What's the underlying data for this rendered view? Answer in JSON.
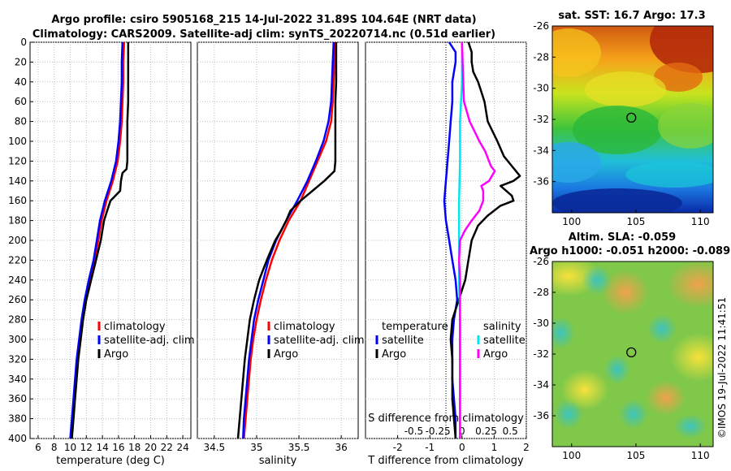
{
  "header": {
    "title_line1": "Argo profile: csiro 5905168_215 14-Jul-2022 31.89S 104.64E (NRT data)",
    "title_line2": "Climatology: CARS2009. Satellite-adj clim: synTS_20220714.nc (0.51d earlier)"
  },
  "timestamp": "©IMOS 19-Jul-2022 11:41:51",
  "colors": {
    "climatology": "#ff0000",
    "satellite": "#0000ff",
    "argo": "#000000",
    "salinity_satellite": "#00e5ee",
    "salinity_argo": "#ff00ff"
  },
  "chart_data": [
    {
      "type": "line",
      "name": "temperature-profile",
      "xlabel": "temperature (deg C)",
      "ylabel": "",
      "xlim": [
        5,
        25
      ],
      "ylim": [
        0,
        400
      ],
      "x_ticks": [
        6,
        8,
        10,
        12,
        14,
        16,
        18,
        20,
        22,
        24
      ],
      "y_ticks": [
        0,
        20,
        40,
        60,
        80,
        100,
        120,
        140,
        160,
        180,
        200,
        220,
        240,
        260,
        280,
        300,
        320,
        340,
        360,
        380,
        400
      ],
      "grid": true,
      "legend": [
        "climatology",
        "satellite-adj. clim",
        "Argo"
      ],
      "series": [
        {
          "name": "climatology",
          "depth": [
            0,
            20,
            40,
            60,
            80,
            100,
            120,
            140,
            160,
            180,
            200,
            220,
            240,
            260,
            280,
            300,
            320,
            340,
            360,
            380,
            400
          ],
          "values": [
            16.7,
            16.6,
            16.6,
            16.5,
            16.4,
            16.2,
            15.9,
            15.3,
            14.5,
            13.9,
            13.5,
            13.0,
            12.4,
            11.9,
            11.5,
            11.2,
            10.9,
            10.7,
            10.5,
            10.3,
            10.1
          ]
        },
        {
          "name": "satellite-adj. clim",
          "depth": [
            0,
            20,
            40,
            60,
            80,
            100,
            120,
            140,
            160,
            180,
            200,
            220,
            240,
            260,
            280,
            300,
            320,
            340,
            360,
            380,
            400
          ],
          "values": [
            16.5,
            16.4,
            16.4,
            16.3,
            16.2,
            16.0,
            15.7,
            15.1,
            14.3,
            13.7,
            13.3,
            12.9,
            12.3,
            11.8,
            11.4,
            11.1,
            10.8,
            10.6,
            10.4,
            10.2,
            10.0
          ]
        },
        {
          "name": "Argo",
          "depth": [
            0,
            20,
            40,
            60,
            80,
            100,
            120,
            128,
            132,
            140,
            150,
            160,
            170,
            180,
            200,
            220,
            240,
            260,
            280,
            300,
            320,
            340,
            360,
            380,
            400
          ],
          "values": [
            17.2,
            17.2,
            17.2,
            17.2,
            17.1,
            17.1,
            17.1,
            17.0,
            16.5,
            16.3,
            16.2,
            15.0,
            14.6,
            14.2,
            13.8,
            13.2,
            12.6,
            12.0,
            11.6,
            11.3,
            11.0,
            10.8,
            10.6,
            10.4,
            10.2
          ]
        }
      ]
    },
    {
      "type": "line",
      "name": "salinity-profile",
      "xlabel": "salinity",
      "xlim": [
        34.3,
        36.2
      ],
      "ylim": [
        0,
        400
      ],
      "x_ticks": [
        34.5,
        35,
        35.5,
        36
      ],
      "grid": true,
      "legend": [
        "climatology",
        "satellite-adj. clim",
        "Argo"
      ],
      "series": [
        {
          "name": "climatology",
          "depth": [
            0,
            20,
            40,
            60,
            80,
            100,
            120,
            140,
            160,
            180,
            200,
            220,
            240,
            260,
            280,
            300,
            320,
            340,
            360,
            380,
            400
          ],
          "values": [
            35.93,
            35.92,
            35.91,
            35.9,
            35.88,
            35.82,
            35.72,
            35.62,
            35.52,
            35.38,
            35.27,
            35.18,
            35.11,
            35.05,
            35.0,
            34.96,
            34.93,
            34.91,
            34.89,
            34.87,
            34.85
          ]
        },
        {
          "name": "satellite-adj. clim",
          "depth": [
            0,
            20,
            40,
            60,
            80,
            100,
            120,
            140,
            160,
            180,
            200,
            220,
            240,
            260,
            280,
            300,
            320,
            340,
            360,
            380,
            400
          ],
          "values": [
            35.91,
            35.9,
            35.89,
            35.88,
            35.85,
            35.79,
            35.7,
            35.6,
            35.48,
            35.35,
            35.23,
            35.14,
            35.08,
            35.02,
            34.97,
            34.94,
            34.91,
            34.89,
            34.87,
            34.85,
            34.84
          ]
        },
        {
          "name": "Argo",
          "depth": [
            0,
            20,
            40,
            60,
            80,
            100,
            120,
            130,
            140,
            150,
            160,
            170,
            180,
            190,
            200,
            220,
            240,
            260,
            280,
            300,
            320,
            340,
            360,
            380,
            400
          ],
          "values": [
            35.94,
            35.94,
            35.94,
            35.93,
            35.93,
            35.93,
            35.93,
            35.92,
            35.8,
            35.66,
            35.52,
            35.4,
            35.35,
            35.29,
            35.22,
            35.12,
            35.03,
            34.97,
            34.92,
            34.89,
            34.86,
            34.84,
            34.82,
            34.8,
            34.78
          ]
        }
      ]
    },
    {
      "type": "line",
      "name": "difference-profile",
      "xlabel": "T difference from climatology",
      "xlabel_top": "S difference from climatology",
      "xlim": [
        -3,
        2
      ],
      "ylim": [
        0,
        400
      ],
      "x_ticks": [
        -2,
        -1,
        0,
        1,
        2
      ],
      "x_ticks_top": [
        -0.5,
        -0.25,
        0,
        0.25,
        0.5
      ],
      "grid": true,
      "legend_left_title": "temperature",
      "legend_left": [
        "satellite",
        "Argo"
      ],
      "legend_right_title": "salinity",
      "legend_right": [
        "satellite",
        "Argo"
      ],
      "series": [
        {
          "name": "temperature satellite",
          "depth": [
            0,
            10,
            20,
            40,
            60,
            80,
            100,
            120,
            140,
            160,
            180,
            200,
            220,
            240,
            260,
            280,
            300,
            320,
            340,
            360,
            380,
            400
          ],
          "values": [
            -0.4,
            -0.2,
            -0.2,
            -0.3,
            -0.3,
            -0.35,
            -0.4,
            -0.45,
            -0.5,
            -0.55,
            -0.5,
            -0.4,
            -0.3,
            -0.2,
            -0.15,
            -0.25,
            -0.3,
            -0.3,
            -0.3,
            -0.25,
            -0.2,
            -0.2
          ]
        },
        {
          "name": "temperature Argo",
          "depth": [
            0,
            10,
            20,
            30,
            40,
            50,
            60,
            70,
            80,
            100,
            115,
            125,
            135,
            140,
            145,
            155,
            160,
            165,
            175,
            185,
            200,
            220,
            240,
            260,
            280,
            300,
            320,
            340,
            360,
            380,
            400
          ],
          "values": [
            0.2,
            0.3,
            0.3,
            0.35,
            0.5,
            0.6,
            0.7,
            0.75,
            0.8,
            1.1,
            1.3,
            1.55,
            1.8,
            1.6,
            1.2,
            1.55,
            1.6,
            1.2,
            0.8,
            0.5,
            0.3,
            0.2,
            0.1,
            -0.1,
            -0.3,
            -0.35,
            -0.3,
            -0.3,
            -0.3,
            -0.25,
            -0.2
          ]
        },
        {
          "name": "salinity satellite",
          "depth": [
            0,
            40,
            80,
            120,
            160,
            200,
            240,
            280,
            320,
            360,
            400
          ],
          "values": [
            0.0,
            0.0,
            -0.02,
            -0.02,
            -0.03,
            -0.03,
            -0.03,
            -0.02,
            -0.02,
            -0.02,
            -0.02
          ]
        },
        {
          "name": "salinity Argo",
          "depth": [
            0,
            60,
            80,
            100,
            110,
            125,
            130,
            140,
            145,
            150,
            160,
            170,
            180,
            190,
            200,
            220,
            240,
            260,
            280,
            300,
            320,
            340,
            360,
            380,
            400
          ],
          "values": [
            0.0,
            0.02,
            0.08,
            0.18,
            0.24,
            0.3,
            0.34,
            0.28,
            0.2,
            0.22,
            0.22,
            0.18,
            0.1,
            0.03,
            -0.02,
            -0.03,
            -0.02,
            -0.02,
            -0.02,
            -0.02,
            -0.02,
            -0.02,
            -0.02,
            -0.02,
            -0.02
          ]
        }
      ]
    },
    {
      "type": "heatmap",
      "name": "sst-map",
      "title": "sat. SST: 16.7 Argo: 17.3",
      "x_ticks": [
        100,
        105,
        110
      ],
      "y_ticks": [
        -26,
        -28,
        -30,
        -32,
        -34,
        -36
      ],
      "xlim": [
        98.5,
        111
      ],
      "ylim": [
        -38,
        -26
      ],
      "marker": {
        "lon": 104.64,
        "lat": -31.89
      }
    },
    {
      "type": "heatmap",
      "name": "sla-map",
      "title_line1": "Altim. SLA: -0.059",
      "title_line2": "Argo h1000: -0.051 h2000: -0.089",
      "x_ticks": [
        100,
        105,
        110
      ],
      "y_ticks": [
        -26,
        -28,
        -30,
        -32,
        -34,
        -36
      ],
      "xlim": [
        98.5,
        111
      ],
      "ylim": [
        -38,
        -26
      ],
      "marker": {
        "lon": 104.64,
        "lat": -31.89
      }
    }
  ]
}
